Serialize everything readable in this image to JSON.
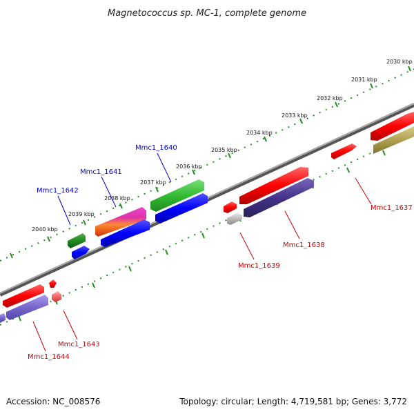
{
  "title": "Magnetococcus sp. MC-1, complete genome",
  "footer": {
    "accession": "Accession: NC_008576",
    "summary": "Topology: circular; Length: 4,719,581 bp; Genes: 3,772"
  },
  "kbp_labels": [
    "2030 kbp",
    "2031 kbp",
    "2032 kbp",
    "2033 kbp",
    "2034 kbp",
    "2035 kbp",
    "2036 kbp",
    "2037 kbp",
    "2038 kbp",
    "2039 kbp",
    "2040 kbp"
  ],
  "gene_labels": [
    {
      "text": "Mmc1_1637",
      "color": "#cc0000"
    },
    {
      "text": "Mmc1_1638",
      "color": "#cc0000"
    },
    {
      "text": "Mmc1_1639",
      "color": "#cc0000"
    },
    {
      "text": "Mmc1_1640",
      "color": "#0000cc"
    },
    {
      "text": "Mmc1_1641",
      "color": "#0000cc"
    },
    {
      "text": "Mmc1_1642",
      "color": "#0000cc"
    },
    {
      "text": "Mmc1_1643",
      "color": "#cc0000"
    },
    {
      "text": "Mmc1_1644",
      "color": "#cc0000"
    }
  ],
  "colors": {
    "backbone": "#7a7a7a",
    "ticks": "#228b22",
    "forward_cds": "#ff0000",
    "reverse_cds": "#0000ff",
    "green_feature": "#33bb33",
    "purple_feature": "#443388",
    "lavender_feature": "#7766cc",
    "olive_feature": "#b0a050",
    "gray_feature": "#bbbbbb",
    "magenta_feature": "#dd33aa"
  }
}
